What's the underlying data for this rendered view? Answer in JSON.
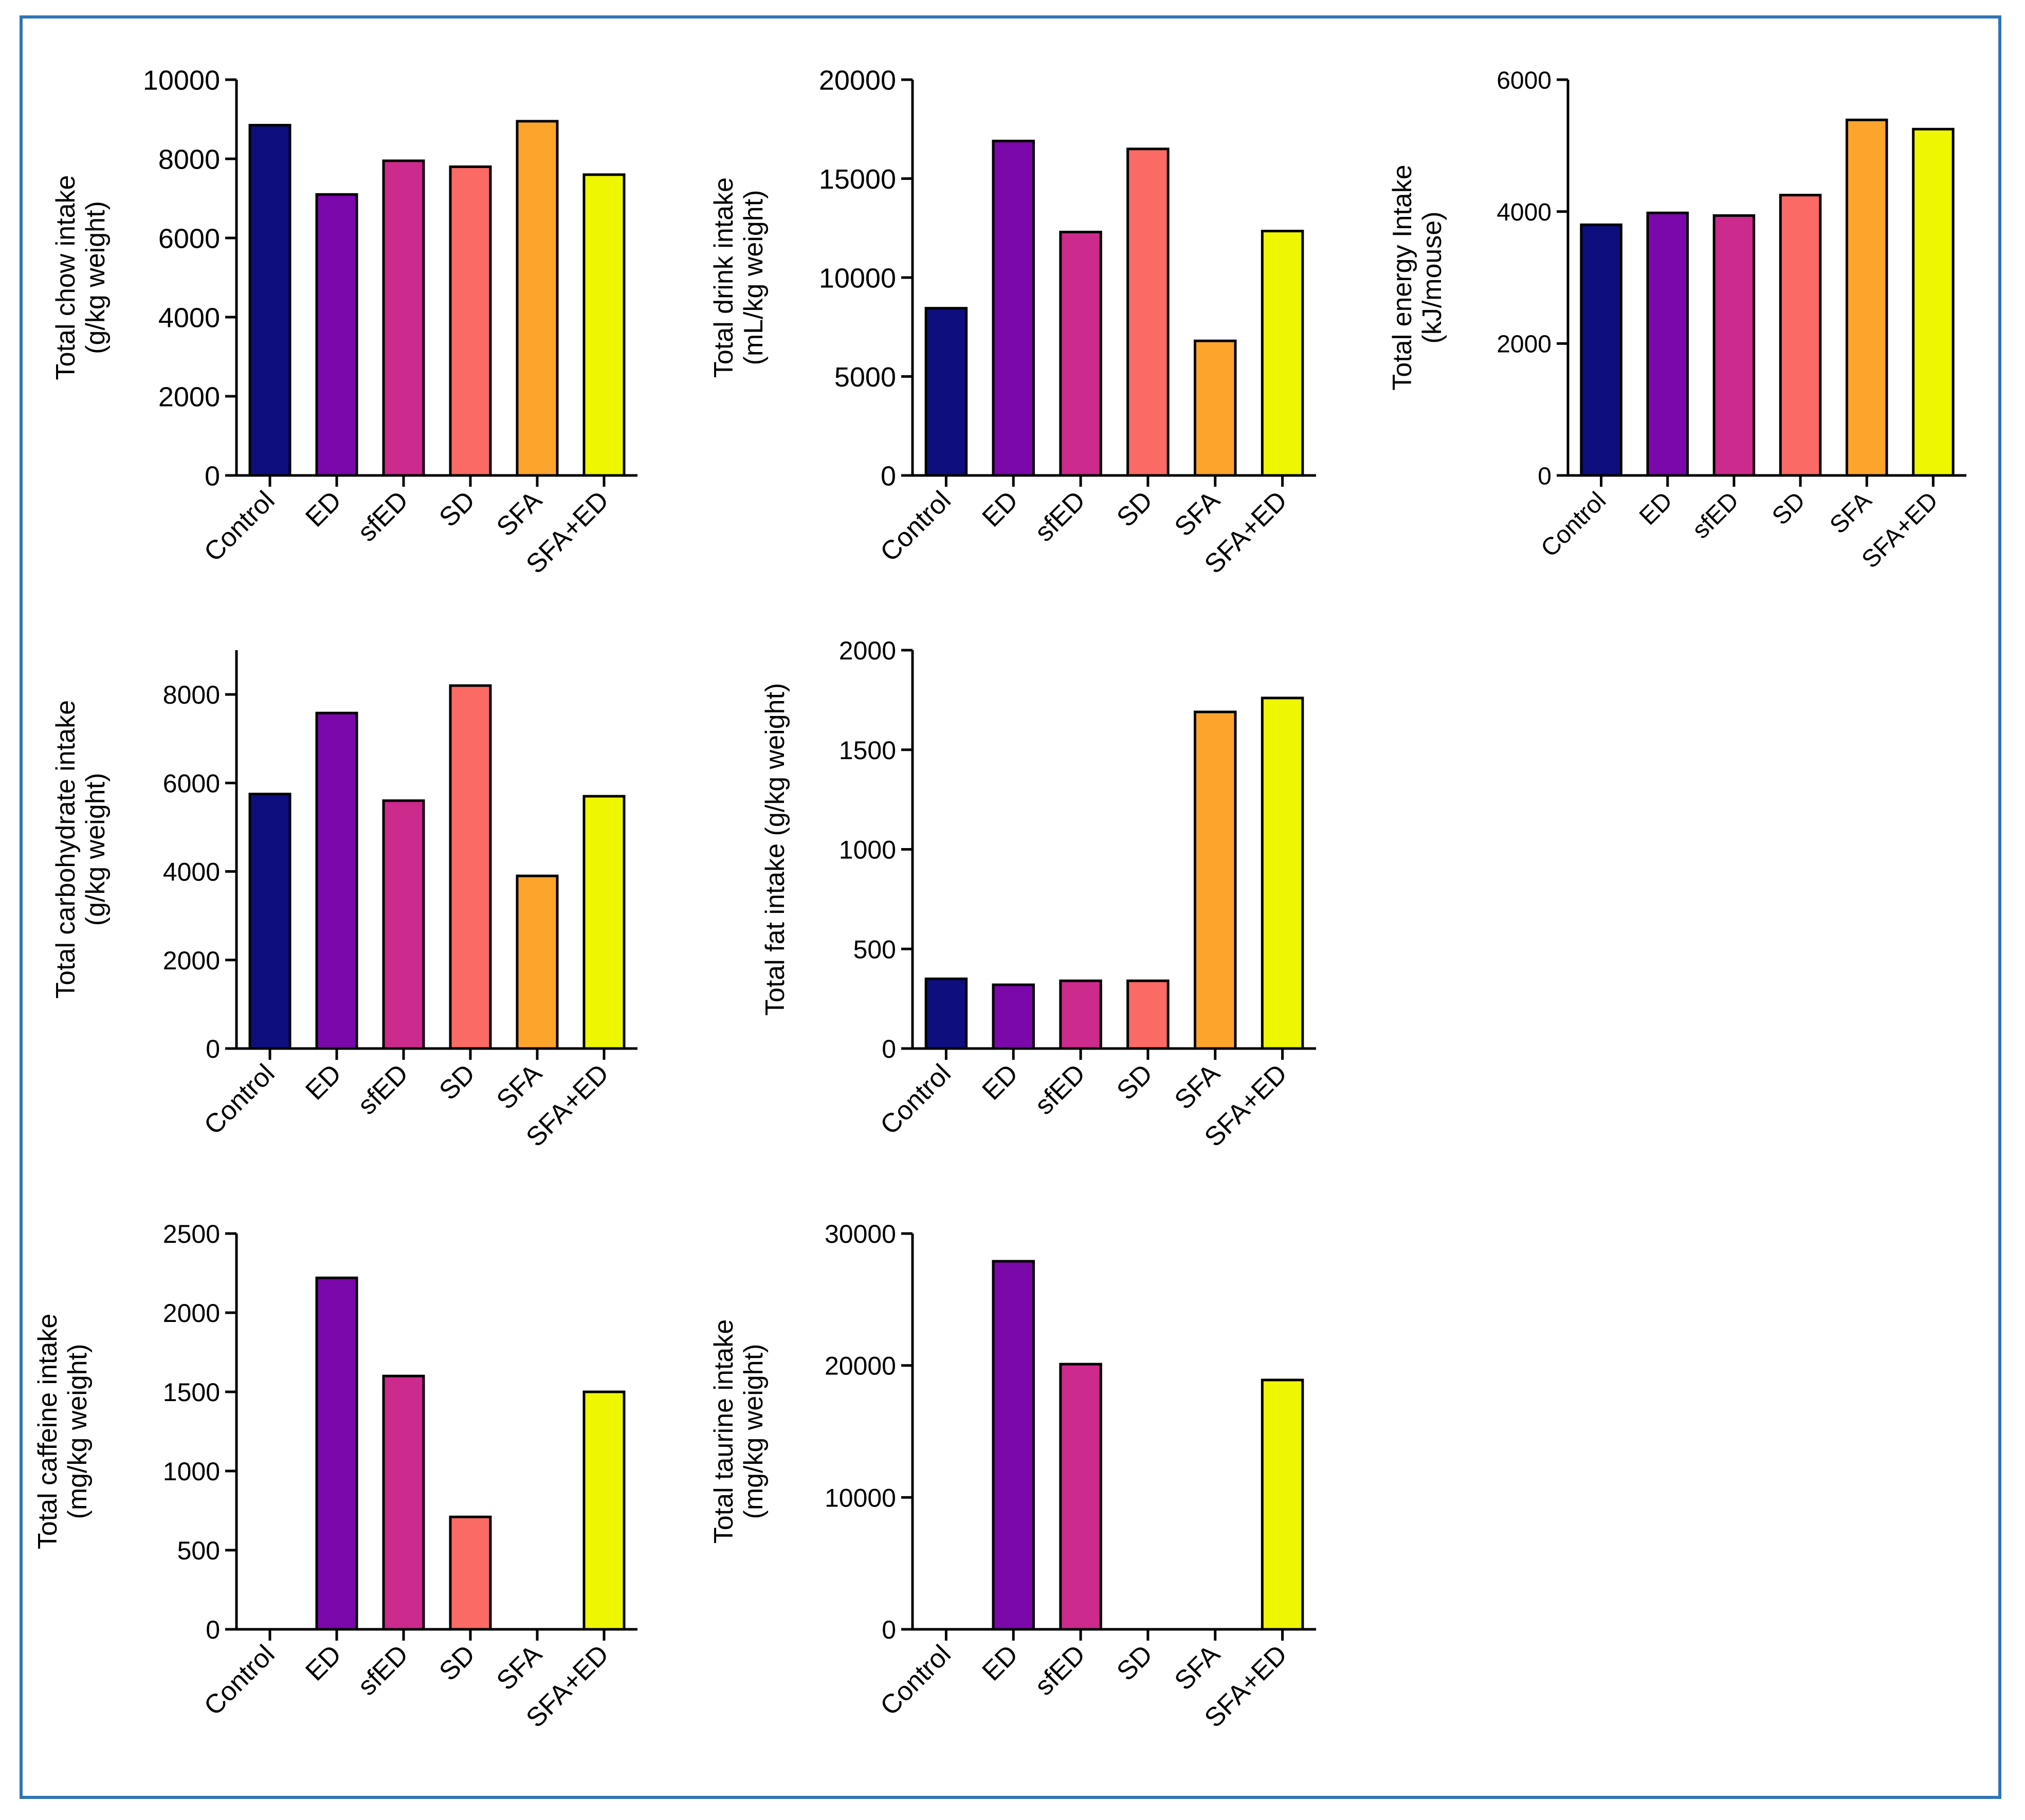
{
  "colors": {
    "frame": "#2e75b6",
    "bars": [
      "#0e0e7e",
      "#7a08aa",
      "#cc2a8d",
      "#fb6a64",
      "#fda42d",
      "#eef600"
    ]
  },
  "chart_data": [
    {
      "type": "bar",
      "title": "",
      "ylabel": [
        "Total chow intake",
        "(g/kg weight)"
      ],
      "categories": [
        "Control",
        "ED",
        "sfED",
        "SD",
        "SFA",
        "SFA+ED"
      ],
      "values": [
        8850,
        7100,
        7950,
        7800,
        8950,
        7600
      ],
      "ylim": [
        0,
        10000
      ],
      "yticks": [
        0,
        2000,
        4000,
        6000,
        8000,
        10000
      ]
    },
    {
      "type": "bar",
      "title": "",
      "ylabel": [
        "Total drink intake",
        "(mL/kg weight)"
      ],
      "categories": [
        "Control",
        "ED",
        "sfED",
        "SD",
        "SFA",
        "SFA+ED"
      ],
      "values": [
        8450,
        16900,
        12300,
        16500,
        6800,
        12350
      ],
      "ylim": [
        0,
        20000
      ],
      "yticks": [
        0,
        5000,
        10000,
        15000,
        20000
      ]
    },
    {
      "type": "bar",
      "title": "",
      "ylabel": [
        "Total energy Intake",
        "(kJ/mouse)"
      ],
      "categories": [
        "Control",
        "ED",
        "sfED",
        "SD",
        "SFA",
        "SFA+ED"
      ],
      "values": [
        3800,
        3980,
        3940,
        4250,
        5390,
        5250
      ],
      "ylim": [
        0,
        6000
      ],
      "yticks": [
        0,
        2000,
        4000,
        6000
      ]
    },
    {
      "type": "bar",
      "title": "",
      "ylabel": [
        "Total carbohydrate intake",
        "(g/kg weight)"
      ],
      "categories": [
        "Control",
        "ED",
        "sfED",
        "SD",
        "SFA",
        "SFA+ED"
      ],
      "values": [
        5750,
        7580,
        5600,
        8200,
        3900,
        5700
      ],
      "ylim": [
        0,
        9000
      ],
      "yticks": [
        0,
        2000,
        4000,
        6000,
        8000
      ]
    },
    {
      "type": "bar",
      "title": "",
      "ylabel": [
        "Total fat intake (g/kg weight)"
      ],
      "categories": [
        "Control",
        "ED",
        "sfED",
        "SD",
        "SFA",
        "SFA+ED"
      ],
      "values": [
        350,
        320,
        340,
        340,
        1690,
        1760
      ],
      "ylim": [
        0,
        2000
      ],
      "yticks": [
        0,
        500,
        1000,
        1500,
        2000
      ]
    },
    {
      "type": "bar",
      "title": "",
      "ylabel": [
        "Total caffeine intake",
        "(mg/kg weight)"
      ],
      "categories": [
        "Control",
        "ED",
        "sfED",
        "SD",
        "SFA",
        "SFA+ED"
      ],
      "values": [
        0,
        2220,
        1600,
        710,
        0,
        1500
      ],
      "ylim": [
        0,
        2500
      ],
      "yticks": [
        0,
        500,
        1000,
        1500,
        2000,
        2500
      ]
    },
    {
      "type": "bar",
      "title": "",
      "ylabel": [
        "Total taurine intake",
        "(mg/kg weight)"
      ],
      "categories": [
        "Control",
        "ED",
        "sfED",
        "SD",
        "SFA",
        "SFA+ED"
      ],
      "values": [
        0,
        27900,
        20100,
        0,
        0,
        18900
      ],
      "ylim": [
        0,
        30000
      ],
      "yticks": [
        0,
        10000,
        20000,
        30000
      ]
    }
  ]
}
